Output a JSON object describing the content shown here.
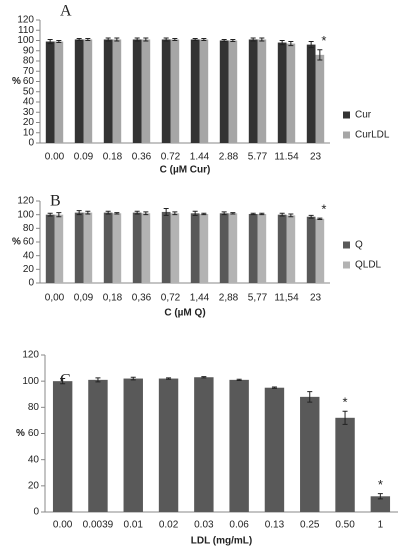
{
  "chart_data": [
    {
      "type": "bar",
      "panel_label": "A",
      "y_label": "%",
      "x_label": "C (µM Cur)",
      "categories": [
        "0.00",
        "0.09",
        "0.18",
        "0.36",
        "0.72",
        "1.44",
        "2.88",
        "5.77",
        "11.54",
        "23"
      ],
      "series": [
        {
          "name": "Cur",
          "color": "#333333",
          "values": [
            99,
            101,
            101,
            101,
            101,
            101,
            100,
            101,
            98,
            96
          ],
          "errors": [
            2,
            1,
            1.5,
            1.5,
            1.5,
            1,
            1,
            1.5,
            2,
            3
          ]
        },
        {
          "name": "CurLDL",
          "color": "#a6a6a6",
          "values": [
            99,
            101,
            101,
            101,
            101,
            101,
            100,
            101,
            97,
            86
          ],
          "errors": [
            1,
            1,
            1.5,
            1.5,
            1,
            1,
            1,
            1.5,
            2,
            5
          ]
        }
      ],
      "ylim": [
        0,
        120
      ],
      "yticks": [
        0,
        10,
        20,
        30,
        40,
        50,
        60,
        70,
        80,
        90,
        100,
        110,
        120
      ],
      "legend": "right",
      "annotations": [
        {
          "text": "*",
          "category": "23",
          "series": "CurLDL"
        }
      ]
    },
    {
      "type": "bar",
      "panel_label": "B",
      "y_label": "%",
      "x_label": "C (µM Q)",
      "categories": [
        "0,00",
        "0,09",
        "0,18",
        "0,36",
        "0,72",
        "1,44",
        "2,88",
        "5,77",
        "11,54",
        "23"
      ],
      "series": [
        {
          "name": "Q",
          "color": "#595959",
          "values": [
            100,
            103,
            103,
            103,
            104,
            102,
            102,
            101,
            100,
            97
          ],
          "errors": [
            2,
            3,
            2,
            2,
            5,
            3,
            2,
            1,
            2,
            2
          ]
        },
        {
          "name": "QLDL",
          "color": "#b3b3b3",
          "values": [
            100,
            103,
            102,
            102,
            102,
            101,
            102,
            101,
            99,
            94
          ],
          "errors": [
            3,
            2,
            1,
            2,
            2,
            1,
            1,
            1,
            2,
            1
          ]
        }
      ],
      "ylim": [
        0,
        120
      ],
      "yticks": [
        0,
        20,
        40,
        60,
        80,
        100,
        120
      ],
      "legend": "right",
      "annotations": [
        {
          "text": "*",
          "category": "23",
          "series": "QLDL"
        }
      ]
    },
    {
      "type": "bar",
      "panel_label": "C",
      "y_label": "%",
      "x_label": "LDL (mg/mL)",
      "categories": [
        "0.00",
        "0.0039",
        "0.01",
        "0.02",
        "0.03",
        "0.06",
        "0.13",
        "0.25",
        "0.50",
        "1"
      ],
      "series": [
        {
          "color": "#595959",
          "values": [
            100,
            101,
            102,
            102,
            103,
            101,
            95,
            88,
            72,
            12
          ],
          "errors": [
            2,
            1.5,
            1,
            0.5,
            0.5,
            0.5,
            0.5,
            4,
            5,
            2
          ]
        }
      ],
      "ylim": [
        0,
        120
      ],
      "yticks": [
        0,
        20,
        40,
        60,
        80,
        100,
        120
      ],
      "annotations": [
        {
          "text": "*",
          "category": "0.50"
        },
        {
          "text": "*",
          "category": "1"
        }
      ]
    }
  ]
}
